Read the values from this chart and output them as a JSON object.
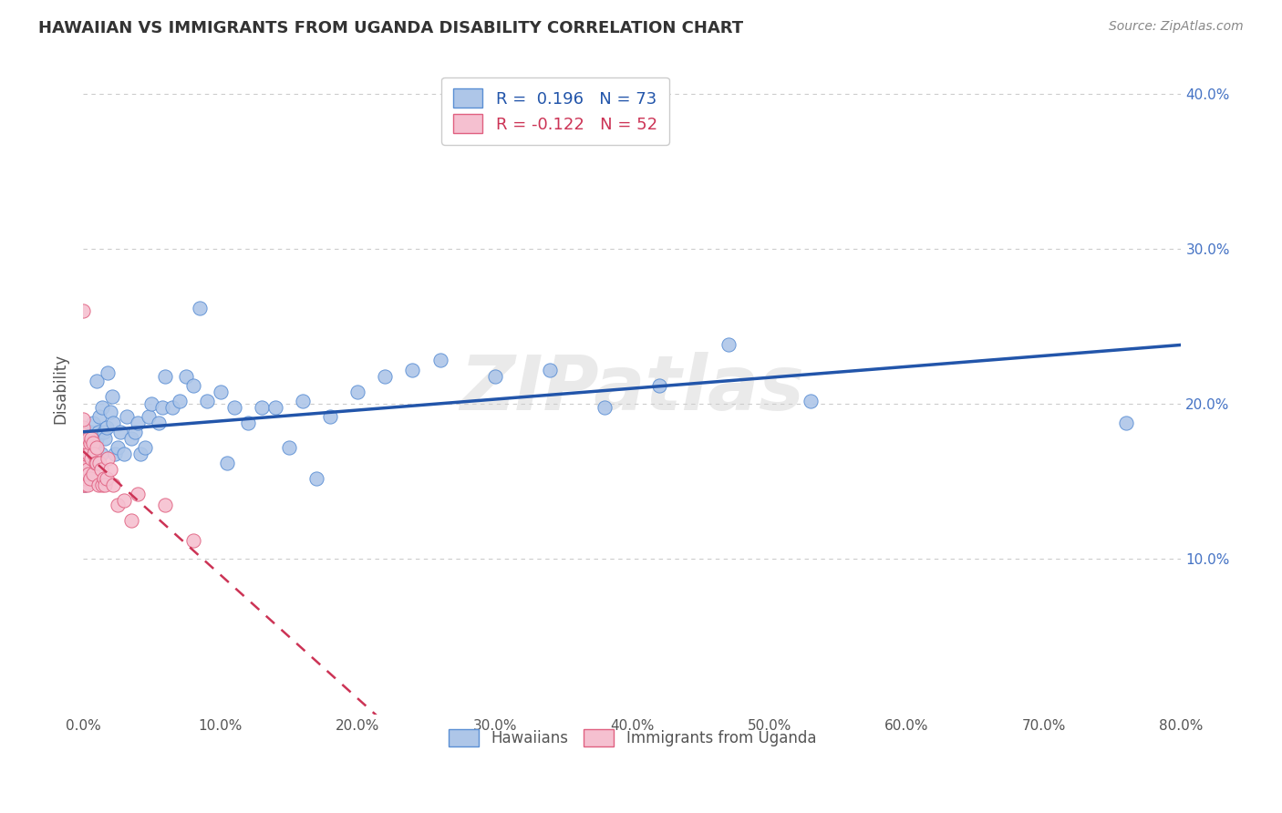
{
  "title": "HAWAIIAN VS IMMIGRANTS FROM UGANDA DISABILITY CORRELATION CHART",
  "source": "Source: ZipAtlas.com",
  "ylabel": "Disability",
  "watermark": "ZIPatlas",
  "hawaiians": {
    "R": 0.196,
    "N": 73,
    "color": "#aec6e8",
    "edge_color": "#5b8fd4",
    "line_color": "#2255aa",
    "x": [
      0.0,
      0.0,
      0.0,
      0.001,
      0.001,
      0.001,
      0.002,
      0.002,
      0.003,
      0.003,
      0.004,
      0.005,
      0.005,
      0.006,
      0.007,
      0.008,
      0.008,
      0.009,
      0.01,
      0.01,
      0.011,
      0.012,
      0.013,
      0.014,
      0.015,
      0.016,
      0.017,
      0.018,
      0.02,
      0.021,
      0.022,
      0.023,
      0.025,
      0.027,
      0.03,
      0.032,
      0.035,
      0.038,
      0.04,
      0.042,
      0.045,
      0.048,
      0.05,
      0.055,
      0.058,
      0.06,
      0.065,
      0.07,
      0.075,
      0.08,
      0.085,
      0.09,
      0.1,
      0.105,
      0.11,
      0.12,
      0.13,
      0.14,
      0.15,
      0.16,
      0.17,
      0.18,
      0.2,
      0.22,
      0.24,
      0.26,
      0.3,
      0.34,
      0.38,
      0.42,
      0.47,
      0.53,
      0.76
    ],
    "y": [
      0.15,
      0.155,
      0.16,
      0.148,
      0.162,
      0.175,
      0.155,
      0.168,
      0.165,
      0.178,
      0.172,
      0.158,
      0.182,
      0.162,
      0.188,
      0.168,
      0.172,
      0.175,
      0.178,
      0.215,
      0.182,
      0.192,
      0.168,
      0.198,
      0.182,
      0.178,
      0.185,
      0.22,
      0.195,
      0.205,
      0.188,
      0.168,
      0.172,
      0.182,
      0.168,
      0.192,
      0.178,
      0.182,
      0.188,
      0.168,
      0.172,
      0.192,
      0.2,
      0.188,
      0.198,
      0.218,
      0.198,
      0.202,
      0.218,
      0.212,
      0.262,
      0.202,
      0.208,
      0.162,
      0.198,
      0.188,
      0.198,
      0.198,
      0.172,
      0.202,
      0.152,
      0.192,
      0.208,
      0.218,
      0.222,
      0.228,
      0.218,
      0.222,
      0.198,
      0.212,
      0.238,
      0.202,
      0.188
    ]
  },
  "uganda": {
    "R": -0.122,
    "N": 52,
    "color": "#f5c0d0",
    "edge_color": "#e06080",
    "line_color": "#cc3355",
    "x": [
      0.0,
      0.0,
      0.0,
      0.0,
      0.0,
      0.0,
      0.0,
      0.0,
      0.0,
      0.0,
      0.0,
      0.001,
      0.001,
      0.001,
      0.001,
      0.001,
      0.002,
      0.002,
      0.002,
      0.002,
      0.003,
      0.003,
      0.003,
      0.004,
      0.004,
      0.004,
      0.005,
      0.005,
      0.006,
      0.006,
      0.007,
      0.007,
      0.008,
      0.009,
      0.01,
      0.01,
      0.011,
      0.012,
      0.013,
      0.014,
      0.015,
      0.016,
      0.017,
      0.018,
      0.02,
      0.022,
      0.025,
      0.03,
      0.035,
      0.04,
      0.06,
      0.08
    ],
    "y": [
      0.148,
      0.152,
      0.158,
      0.162,
      0.165,
      0.17,
      0.175,
      0.18,
      0.185,
      0.19,
      0.26,
      0.148,
      0.155,
      0.162,
      0.17,
      0.178,
      0.152,
      0.162,
      0.168,
      0.178,
      0.148,
      0.158,
      0.175,
      0.155,
      0.168,
      0.178,
      0.152,
      0.175,
      0.165,
      0.178,
      0.155,
      0.175,
      0.168,
      0.162,
      0.162,
      0.172,
      0.148,
      0.162,
      0.158,
      0.148,
      0.152,
      0.148,
      0.152,
      0.165,
      0.158,
      0.148,
      0.135,
      0.138,
      0.125,
      0.142,
      0.135,
      0.112
    ]
  },
  "xlim": [
    0.0,
    0.8
  ],
  "ylim": [
    0.0,
    0.42
  ],
  "xticks": [
    0.0,
    0.1,
    0.2,
    0.3,
    0.4,
    0.5,
    0.6,
    0.7,
    0.8
  ],
  "yticks": [
    0.1,
    0.2,
    0.3,
    0.4
  ],
  "background_color": "#ffffff",
  "grid_color": "#cccccc"
}
